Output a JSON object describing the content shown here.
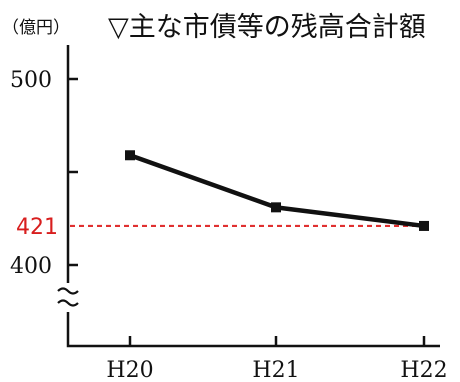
{
  "chart_data": {
    "type": "line",
    "title": "▽主な市債等の残高合計額",
    "unit_label": "（億円）",
    "categories": [
      "H20",
      "H21",
      "H22"
    ],
    "series": [
      {
        "values": [
          459,
          431,
          421
        ]
      }
    ],
    "y_tick_labels": [
      "500",
      "400"
    ],
    "reference_line": {
      "value": 421,
      "label": "421",
      "color": "#e03030"
    },
    "ylim": [
      400,
      520
    ],
    "y_axis_break": true,
    "grid": false,
    "colors": {
      "line": "#111111",
      "reference": "#e03030"
    }
  }
}
